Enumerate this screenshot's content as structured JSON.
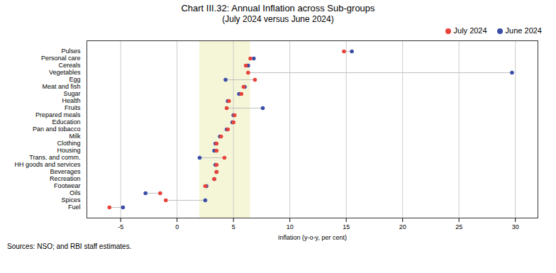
{
  "chart_data": {
    "type": "dumbbell",
    "title": "Chart III.32: Annual Inflation across Sub-groups",
    "subtitle": "(July 2024 versus June 2024)",
    "xlabel": "Inflation (y-o-y, per cent)",
    "caption": "Sources: NSO; and RBI staff estimates.",
    "categories": [
      "Pulses",
      "Personal care",
      "Cereals",
      "Vegetables",
      "Egg",
      "Meat and fish",
      "Sugar",
      "Health",
      "Fruits",
      "Prepared meals",
      "Education",
      "Pan and tobacco",
      "Milk",
      "Clothing",
      "Housing",
      "Trans. and comm.",
      "HH goods and services",
      "Beverages",
      "Recreation",
      "Footwear",
      "Oils",
      "Spices",
      "Fuel"
    ],
    "series": [
      {
        "name": "July 2024",
        "color": "#e8433a",
        "values": [
          14.8,
          6.5,
          6.1,
          6.3,
          6.9,
          5.9,
          5.7,
          4.6,
          4.4,
          5.1,
          5.0,
          4.5,
          3.9,
          3.5,
          3.5,
          4.2,
          3.5,
          3.5,
          3.3,
          2.5,
          -1.5,
          -1.0,
          -6.0
        ]
      },
      {
        "name": "June 2024",
        "color": "#3a4da8",
        "values": [
          15.5,
          6.8,
          6.3,
          29.7,
          4.3,
          6.0,
          5.5,
          4.5,
          7.6,
          5.0,
          4.9,
          4.4,
          3.8,
          3.4,
          3.3,
          2.0,
          3.4,
          3.5,
          3.3,
          2.6,
          -2.8,
          2.5,
          -4.8
        ]
      }
    ],
    "connector_color": "#c0c0c0",
    "highlight": {
      "from": 2.0,
      "to": 6.5,
      "color": "#f5f5d8"
    },
    "xlim": [
      -8,
      32
    ],
    "xticks": [
      -5,
      0,
      5,
      10,
      15,
      20,
      25,
      30
    ],
    "grid": true,
    "legend": "upper right"
  }
}
